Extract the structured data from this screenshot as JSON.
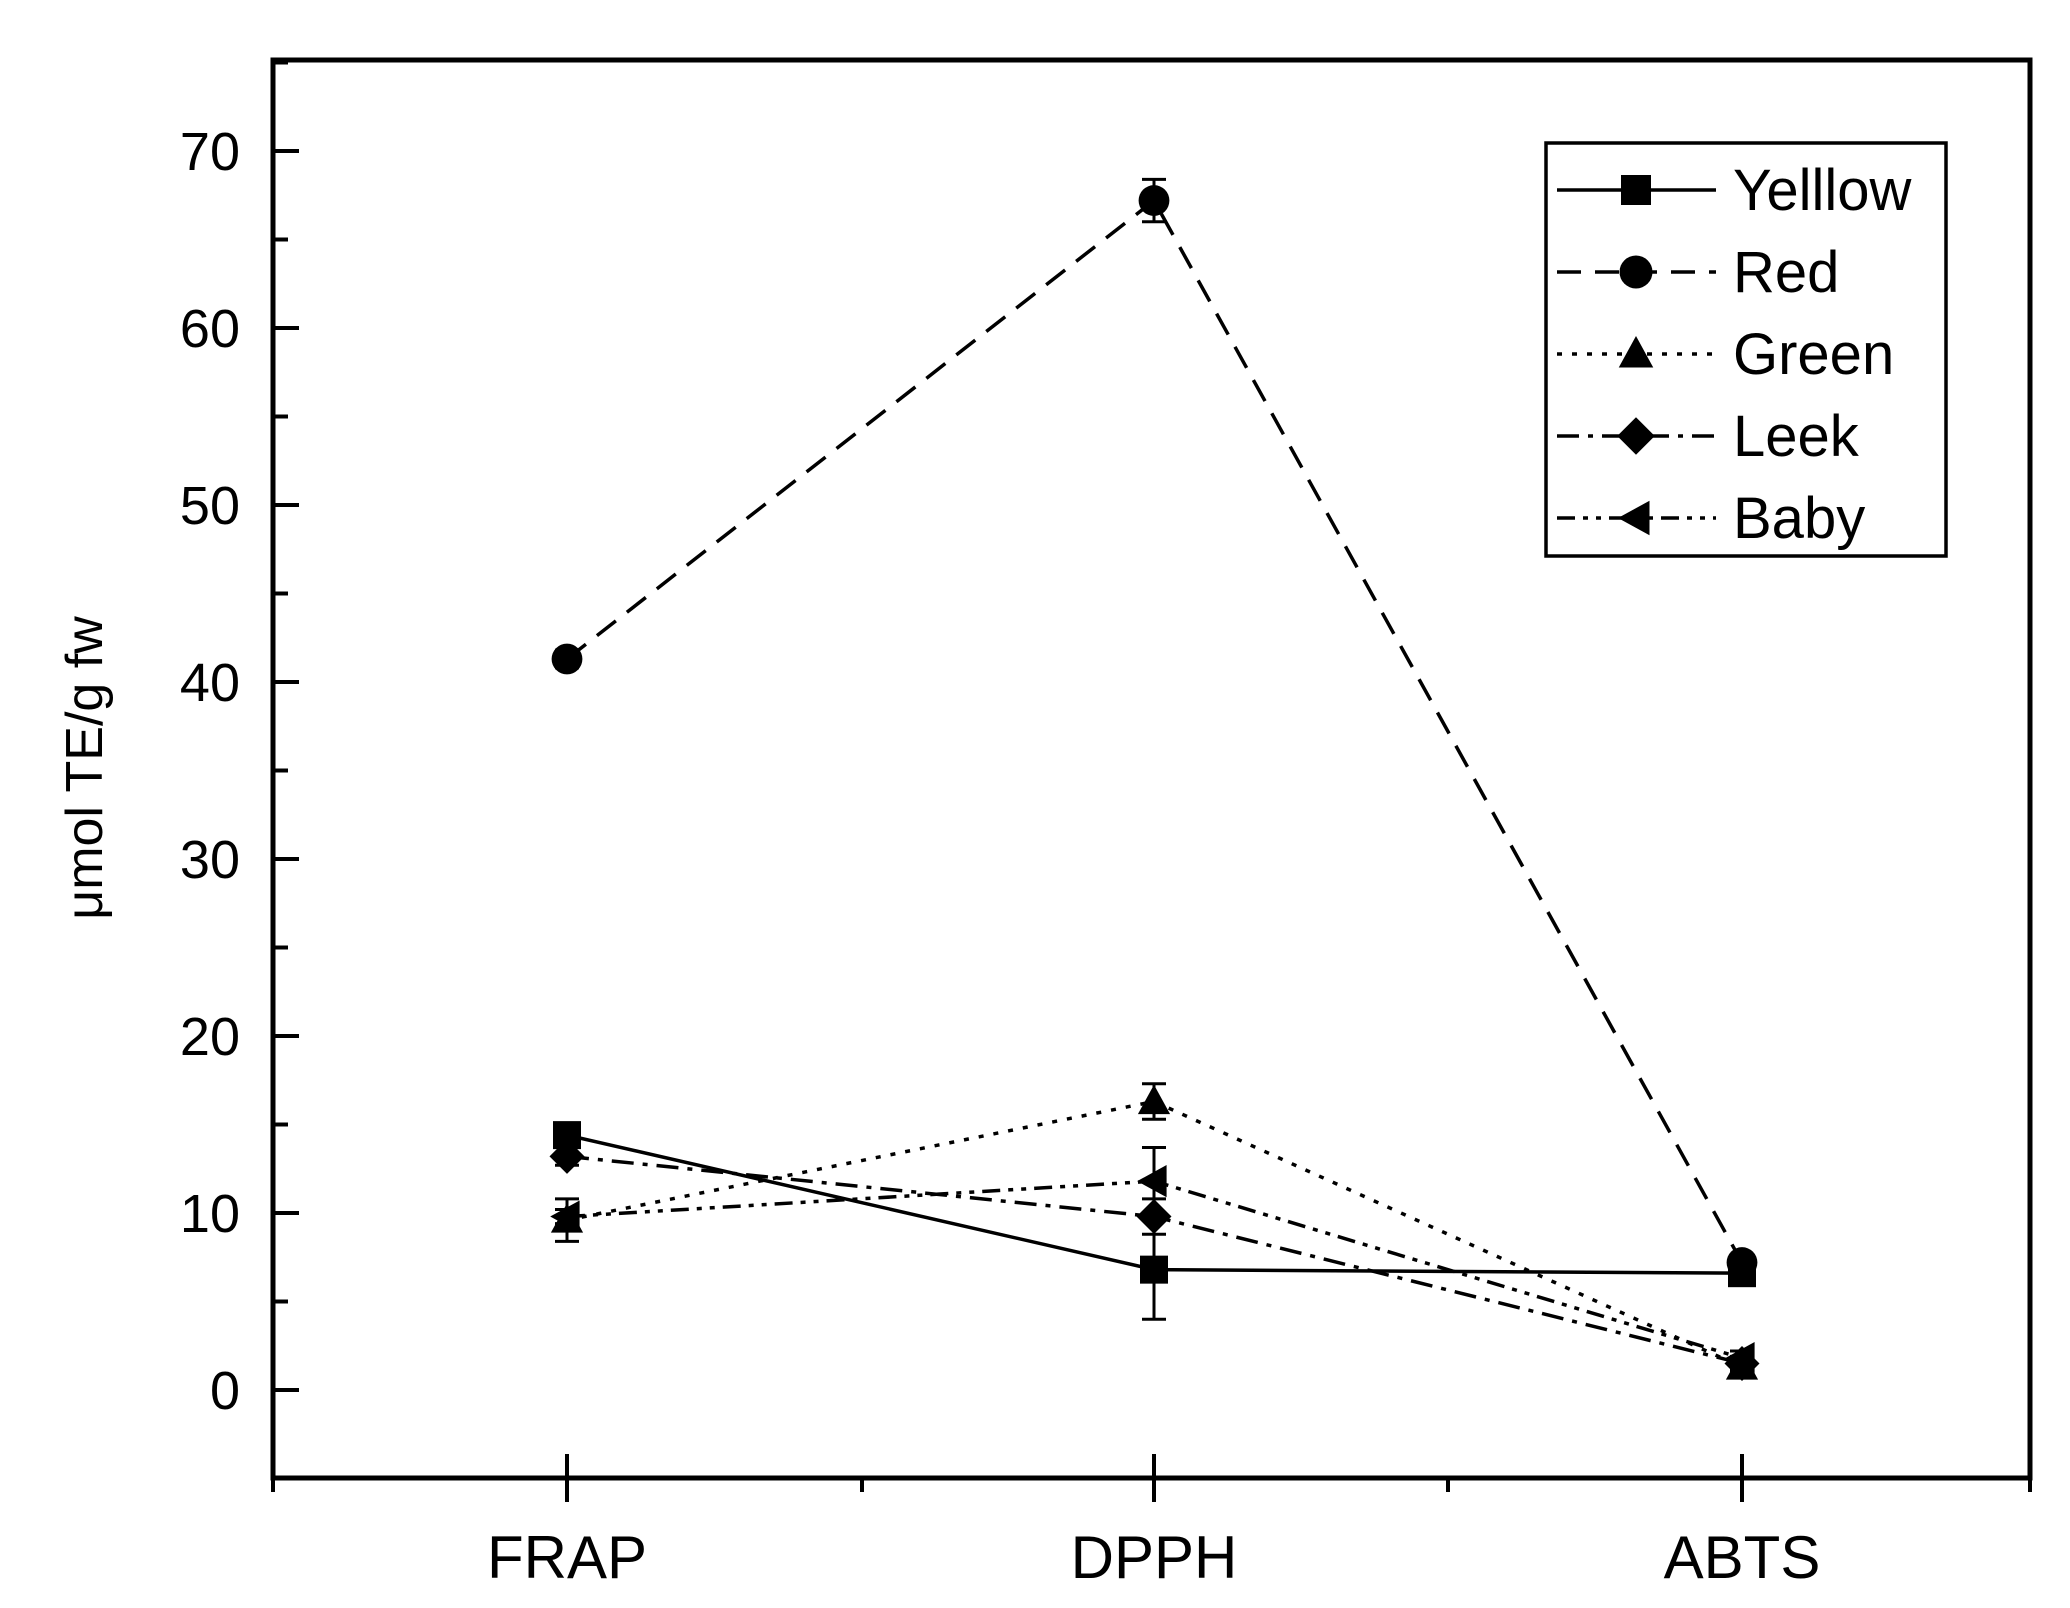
{
  "chart_data": {
    "type": "line",
    "title": "",
    "xlabel": "",
    "ylabel": "μmol TE/g fw",
    "categories": [
      "FRAP",
      "DPPH",
      "ABTS"
    ],
    "ylim": [
      -5,
      75
    ],
    "yticks": [
      0,
      10,
      20,
      30,
      40,
      50,
      60,
      70
    ],
    "y_tick_labels": [
      "0",
      "10",
      "20",
      "30",
      "40",
      "50",
      "60",
      "70"
    ],
    "legend_position": "top-right",
    "grid": false,
    "series": [
      {
        "name": "Yelllow",
        "marker": "square",
        "line_style": "solid",
        "values": [
          14.4,
          6.8,
          6.6
        ],
        "errors": [
          0.6,
          2.8,
          0.4
        ]
      },
      {
        "name": "Red",
        "marker": "circle",
        "line_style": "dashed",
        "values": [
          41.3,
          67.2,
          7.2
        ],
        "errors": [
          0.5,
          1.2,
          0.3
        ]
      },
      {
        "name": "Green",
        "marker": "triangle-up",
        "line_style": "dotted",
        "values": [
          9.6,
          16.3,
          1.3
        ],
        "errors": [
          1.2,
          1.0,
          0.5
        ]
      },
      {
        "name": "Leek",
        "marker": "diamond",
        "line_style": "dash-dot",
        "values": [
          13.2,
          9.8,
          1.5
        ],
        "errors": [
          0.5,
          1.0,
          0.4
        ]
      },
      {
        "name": "Baby",
        "marker": "triangle-left",
        "line_style": "dash-dot-dot",
        "values": [
          9.8,
          11.8,
          1.8
        ],
        "errors": [
          0.4,
          1.9,
          0.4
        ]
      }
    ]
  }
}
